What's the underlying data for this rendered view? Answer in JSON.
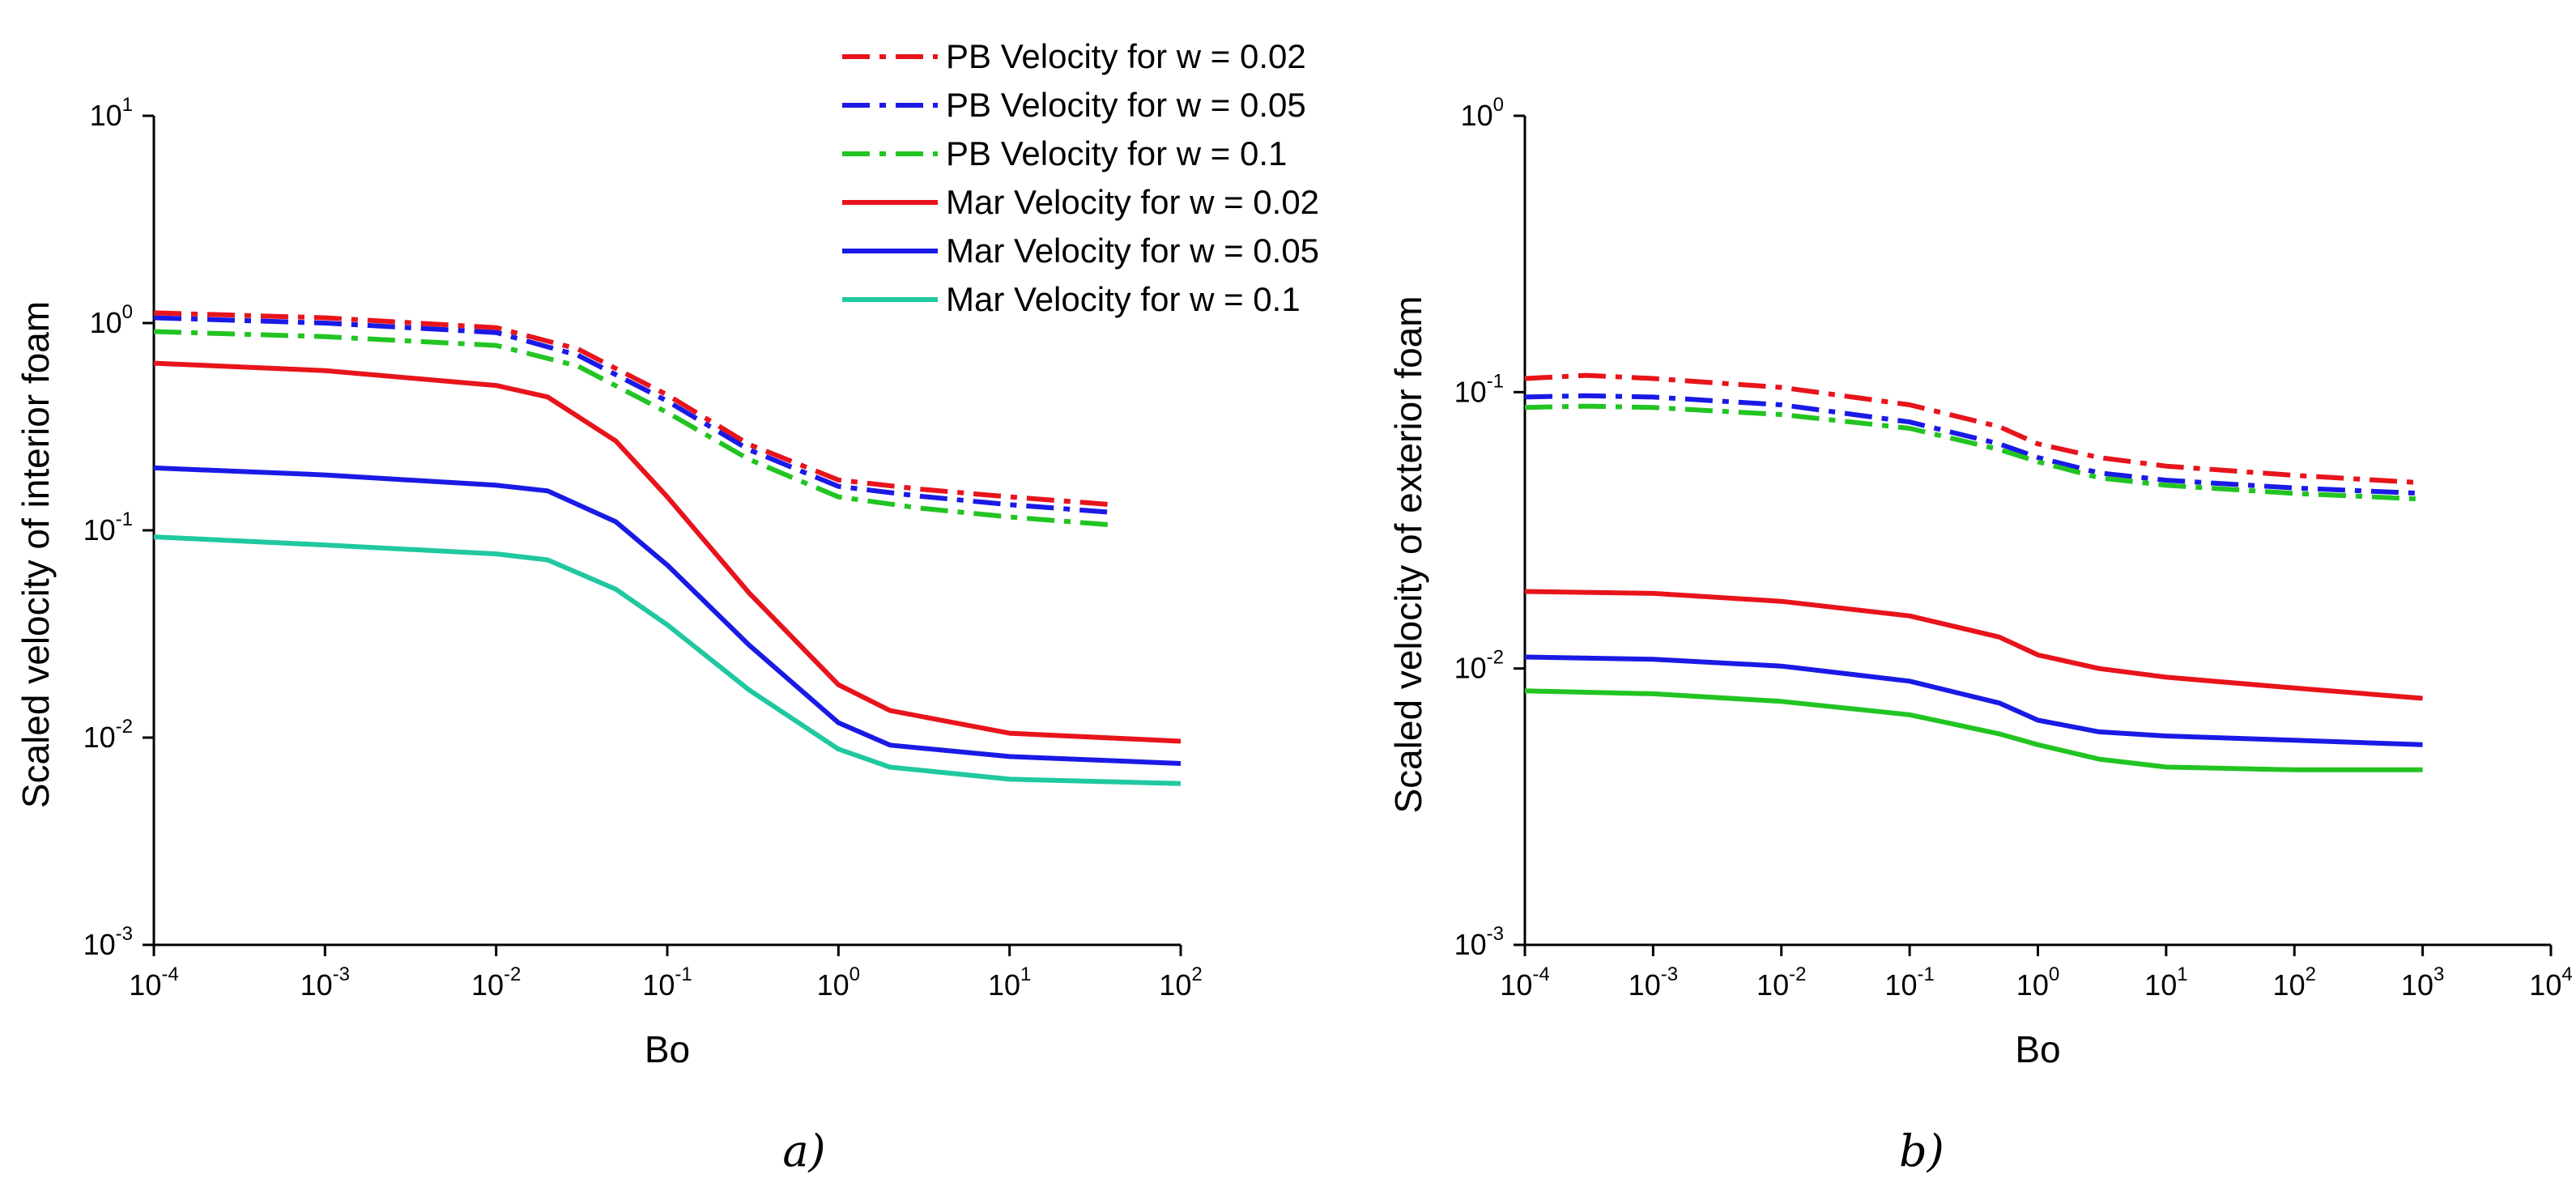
{
  "chart_data": [
    {
      "type": "line",
      "panel_label": "a)",
      "xlabel": "Bo",
      "ylabel": "Scaled velocity of interior foam",
      "x_scale": "log",
      "y_scale": "log",
      "xlim": [
        0.0001,
        100
      ],
      "ylim": [
        0.001,
        10
      ],
      "x_ticks": [
        {
          "base": "10",
          "exp": "-4"
        },
        {
          "base": "10",
          "exp": "-3"
        },
        {
          "base": "10",
          "exp": "-2"
        },
        {
          "base": "10",
          "exp": "-1"
        },
        {
          "base": "10",
          "exp": "0"
        },
        {
          "base": "10",
          "exp": "1"
        },
        {
          "base": "10",
          "exp": "2"
        }
      ],
      "y_ticks": [
        {
          "base": "10",
          "exp": "-3"
        },
        {
          "base": "10",
          "exp": "-2"
        },
        {
          "base": "10",
          "exp": "-1"
        },
        {
          "base": "10",
          "exp": "0"
        },
        {
          "base": "10",
          "exp": "1"
        }
      ],
      "legend_position": "top-right",
      "series": [
        {
          "name": "PB Velocity for w = 0.02",
          "color": "#e8141b",
          "style": "dashdot",
          "x": [
            0.0001,
            0.001,
            0.01,
            0.03,
            0.1,
            0.3,
            1,
            3,
            10,
            40
          ],
          "y": [
            1.12,
            1.06,
            0.95,
            0.75,
            0.45,
            0.26,
            0.175,
            0.158,
            0.145,
            0.133
          ]
        },
        {
          "name": "PB Velocity for w = 0.05",
          "color": "#1a1ae6",
          "style": "dashdot",
          "x": [
            0.0001,
            0.001,
            0.01,
            0.03,
            0.1,
            0.3,
            1,
            3,
            10,
            40
          ],
          "y": [
            1.06,
            1.0,
            0.9,
            0.7,
            0.42,
            0.245,
            0.163,
            0.146,
            0.133,
            0.122
          ]
        },
        {
          "name": "PB Velocity for w = 0.1",
          "color": "#22c422",
          "style": "dashdot",
          "x": [
            0.0001,
            0.001,
            0.01,
            0.03,
            0.1,
            0.3,
            1,
            3,
            10,
            40
          ],
          "y": [
            0.91,
            0.86,
            0.78,
            0.62,
            0.37,
            0.22,
            0.145,
            0.128,
            0.116,
            0.106
          ]
        },
        {
          "name": "Mar Velocity for w = 0.02",
          "color": "#e8141b",
          "style": "solid",
          "x": [
            0.0001,
            0.001,
            0.01,
            0.02,
            0.05,
            0.1,
            0.3,
            1,
            2,
            10,
            100
          ],
          "y": [
            0.64,
            0.59,
            0.5,
            0.44,
            0.27,
            0.145,
            0.05,
            0.018,
            0.0135,
            0.0105,
            0.0096
          ]
        },
        {
          "name": "Mar Velocity for w = 0.05",
          "color": "#1a1ae6",
          "style": "solid",
          "x": [
            0.0001,
            0.001,
            0.01,
            0.02,
            0.05,
            0.1,
            0.3,
            1,
            2,
            10,
            100
          ],
          "y": [
            0.2,
            0.185,
            0.165,
            0.155,
            0.11,
            0.068,
            0.028,
            0.0118,
            0.0092,
            0.0081,
            0.0075
          ]
        },
        {
          "name": "Mar Velocity for w = 0.1",
          "color": "#20c8a0",
          "style": "solid",
          "x": [
            0.0001,
            0.001,
            0.01,
            0.02,
            0.05,
            0.1,
            0.3,
            1,
            2,
            10,
            100
          ],
          "y": [
            0.093,
            0.085,
            0.077,
            0.072,
            0.052,
            0.035,
            0.017,
            0.0088,
            0.0072,
            0.0063,
            0.006
          ]
        }
      ]
    },
    {
      "type": "line",
      "panel_label": "b)",
      "xlabel": "Bo",
      "ylabel": "Scaled velocity of exterior foam",
      "x_scale": "log",
      "y_scale": "log",
      "xlim": [
        0.0001,
        10000
      ],
      "ylim": [
        0.001,
        1
      ],
      "x_ticks": [
        {
          "base": "10",
          "exp": "-4"
        },
        {
          "base": "10",
          "exp": "-3"
        },
        {
          "base": "10",
          "exp": "-2"
        },
        {
          "base": "10",
          "exp": "-1"
        },
        {
          "base": "10",
          "exp": "0"
        },
        {
          "base": "10",
          "exp": "1"
        },
        {
          "base": "10",
          "exp": "2"
        },
        {
          "base": "10",
          "exp": "3"
        },
        {
          "base": "10",
          "exp": "4"
        }
      ],
      "y_ticks": [
        {
          "base": "10",
          "exp": "-3"
        },
        {
          "base": "10",
          "exp": "-2"
        },
        {
          "base": "10",
          "exp": "-1"
        },
        {
          "base": "10",
          "exp": "0"
        }
      ],
      "series": [
        {
          "name": "PB Velocity for w = 0.02",
          "color": "#e8141b",
          "style": "dashdot",
          "x": [
            0.0001,
            0.0003,
            0.001,
            0.01,
            0.1,
            0.5,
            1,
            3,
            10,
            100,
            1000
          ],
          "y": [
            0.112,
            0.115,
            0.112,
            0.104,
            0.09,
            0.075,
            0.065,
            0.058,
            0.054,
            0.05,
            0.047
          ]
        },
        {
          "name": "PB Velocity for w = 0.05",
          "color": "#1a1ae6",
          "style": "dashdot",
          "x": [
            0.0001,
            0.0003,
            0.001,
            0.01,
            0.1,
            0.5,
            1,
            3,
            10,
            100,
            1000
          ],
          "y": [
            0.096,
            0.097,
            0.096,
            0.09,
            0.078,
            0.065,
            0.058,
            0.051,
            0.048,
            0.045,
            0.043
          ]
        },
        {
          "name": "PB Velocity for w = 0.1",
          "color": "#22c422",
          "style": "dashdot",
          "x": [
            0.0001,
            0.0003,
            0.001,
            0.01,
            0.1,
            0.5,
            1,
            3,
            10,
            100,
            1000
          ],
          "y": [
            0.088,
            0.089,
            0.088,
            0.083,
            0.074,
            0.062,
            0.056,
            0.049,
            0.046,
            0.043,
            0.041
          ]
        },
        {
          "name": "Mar Velocity for w = 0.02",
          "color": "#e8141b",
          "style": "solid",
          "x": [
            0.0001,
            0.001,
            0.01,
            0.1,
            0.5,
            1,
            3,
            10,
            100,
            1000
          ],
          "y": [
            0.019,
            0.0187,
            0.0175,
            0.0155,
            0.013,
            0.0112,
            0.01,
            0.0093,
            0.0085,
            0.0078
          ]
        },
        {
          "name": "Mar Velocity for w = 0.05",
          "color": "#1a1ae6",
          "style": "solid",
          "x": [
            0.0001,
            0.001,
            0.01,
            0.1,
            0.5,
            1,
            3,
            10,
            100,
            1000
          ],
          "y": [
            0.011,
            0.0108,
            0.0102,
            0.009,
            0.0075,
            0.0065,
            0.0059,
            0.0057,
            0.0055,
            0.0053
          ]
        },
        {
          "name": "Mar Velocity for w = 0.1",
          "color": "#22c422",
          "style": "solid",
          "x": [
            0.0001,
            0.001,
            0.01,
            0.1,
            0.5,
            1,
            3,
            10,
            100,
            1000
          ],
          "y": [
            0.0083,
            0.0081,
            0.0076,
            0.0068,
            0.0058,
            0.0053,
            0.0047,
            0.0044,
            0.0043,
            0.0043
          ]
        }
      ]
    }
  ]
}
